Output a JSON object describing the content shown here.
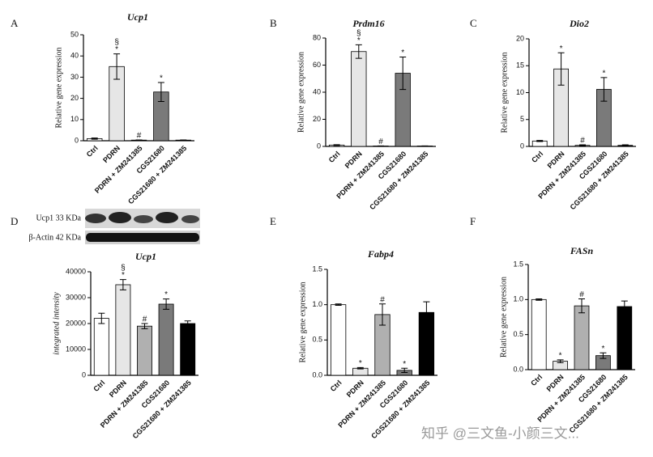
{
  "chart_data": [
    {
      "type": "bar",
      "panel": "A",
      "title": "Ucp1",
      "ylabel": "Relative gene expression",
      "categories": [
        "Ctrl",
        "PDRN",
        "PDRN + ZM241385",
        "CGS21680",
        "CGS21680 + ZM241385"
      ],
      "values": [
        1,
        35,
        0.3,
        23,
        0.3
      ],
      "errors": [
        0.3,
        6,
        0.1,
        4.5,
        0.1
      ],
      "markers": [
        null,
        [
          "§",
          "*"
        ],
        [
          "#"
        ],
        [
          "*"
        ],
        null
      ],
      "colors": [
        "#ffffff",
        "#e6e6e6",
        "#b0b0b0",
        "#7a7a7a",
        "#222222"
      ],
      "ylim": [
        0,
        50
      ],
      "yticks": [
        0,
        10,
        20,
        30,
        40,
        50
      ]
    },
    {
      "type": "bar",
      "panel": "B",
      "title": "Prdm16",
      "ylabel": "Relative gene expression",
      "categories": [
        "Ctrl",
        "PDRN",
        "PDRN + ZM241385",
        "CGS21680",
        "CGS21680 + ZM241385"
      ],
      "values": [
        1,
        70,
        0.3,
        54,
        0.3
      ],
      "errors": [
        0.3,
        5,
        0.1,
        12,
        0.1
      ],
      "markers": [
        null,
        [
          "§",
          "*"
        ],
        [
          "#"
        ],
        [
          "*"
        ],
        null
      ],
      "colors": [
        "#ffffff",
        "#e6e6e6",
        "#b0b0b0",
        "#7a7a7a",
        "#222222"
      ],
      "ylim": [
        0,
        80
      ],
      "yticks": [
        0,
        20,
        40,
        60,
        80
      ]
    },
    {
      "type": "bar",
      "panel": "C",
      "title": "Dio2",
      "ylabel": "Relative gene expression",
      "categories": [
        "Ctrl",
        "PDRN",
        "PDRN + ZM241385",
        "CGS21680",
        "CGS21680 + ZM241385"
      ],
      "values": [
        1,
        14.4,
        0.2,
        10.6,
        0.2
      ],
      "errors": [
        0.1,
        3,
        0.1,
        2.2,
        0.1
      ],
      "markers": [
        null,
        [
          "*"
        ],
        [
          "#"
        ],
        [
          "*"
        ],
        null
      ],
      "colors": [
        "#ffffff",
        "#e6e6e6",
        "#b0b0b0",
        "#7a7a7a",
        "#222222"
      ],
      "ylim": [
        0,
        20
      ],
      "yticks": [
        0,
        5,
        10,
        15,
        20
      ]
    },
    {
      "type": "bar",
      "panel": "D",
      "title": "Ucp1",
      "ylabel": "integrated intensity",
      "blot_labels": [
        "Ucp1 33 KDa",
        "β-Actin 42 KDa"
      ],
      "categories": [
        "Ctrl",
        "PDRN",
        "PDRN + ZM241385",
        "CGS21680",
        "CGS21680 + ZM241385"
      ],
      "values": [
        22000,
        35000,
        19000,
        27500,
        20000
      ],
      "errors": [
        2000,
        2000,
        1000,
        2000,
        1000
      ],
      "markers": [
        null,
        [
          "§",
          "*"
        ],
        [
          "#"
        ],
        [
          "*"
        ],
        null
      ],
      "colors": [
        "#ffffff",
        "#e6e6e6",
        "#b0b0b0",
        "#7a7a7a",
        "#000000"
      ],
      "ylim": [
        0,
        40000
      ],
      "yticks": [
        0,
        10000,
        20000,
        30000,
        40000
      ]
    },
    {
      "type": "bar",
      "panel": "E",
      "title": "Fabp4",
      "ylabel": "Relative gene expression",
      "categories": [
        "Ctrl",
        "PDRN",
        "PDRN + ZM241385",
        "CGS21680",
        "CGS21680 + ZM241385"
      ],
      "values": [
        1.0,
        0.1,
        0.86,
        0.07,
        0.89
      ],
      "errors": [
        0.01,
        0.01,
        0.15,
        0.03,
        0.15
      ],
      "markers": [
        null,
        [
          "*"
        ],
        [
          "#"
        ],
        [
          "*"
        ],
        null
      ],
      "colors": [
        "#ffffff",
        "#e6e6e6",
        "#b0b0b0",
        "#7a7a7a",
        "#000000"
      ],
      "ylim": [
        0,
        1.5
      ],
      "yticks": [
        {
          "value": 0,
          "label": "0.0"
        },
        0.5,
        {
          "value": 1,
          "label": "1.0"
        },
        1.5
      ]
    },
    {
      "type": "bar",
      "panel": "F",
      "title": "FASn",
      "ylabel": "Relative gene expression",
      "categories": [
        "Ctrl",
        "PDRN",
        "PDRN + ZM241385",
        "CGS21680",
        "CGS21680 + ZM241385"
      ],
      "values": [
        1.0,
        0.12,
        0.91,
        0.2,
        0.9
      ],
      "errors": [
        0.01,
        0.02,
        0.1,
        0.04,
        0.08
      ],
      "markers": [
        null,
        [
          "*"
        ],
        [
          "#"
        ],
        [
          "*"
        ],
        null
      ],
      "colors": [
        "#ffffff",
        "#e6e6e6",
        "#b0b0b0",
        "#7a7a7a",
        "#000000"
      ],
      "ylim": [
        0,
        1.5
      ],
      "yticks": [
        {
          "value": 0,
          "label": "0.0"
        },
        0.5,
        {
          "value": 1,
          "label": "1.0"
        },
        1.5
      ]
    }
  ],
  "watermark": "知乎 @三文鱼-小颜三文..."
}
